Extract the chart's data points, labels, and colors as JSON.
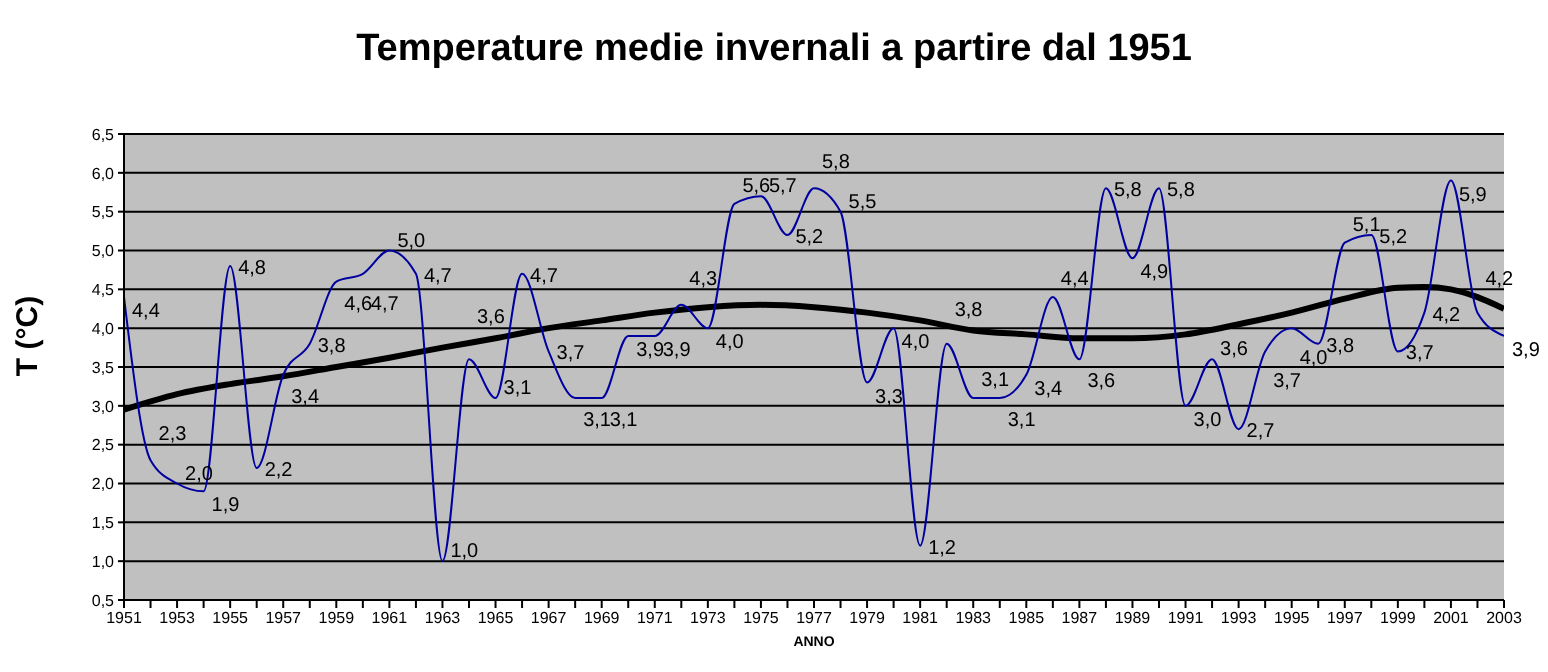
{
  "chart_data": {
    "type": "line",
    "title": "Temperature medie invernali a partire dal 1951",
    "xlabel": "ANNO",
    "ylabel": "T (°C)",
    "x": [
      1951,
      1952,
      1953,
      1954,
      1955,
      1956,
      1957,
      1958,
      1959,
      1960,
      1961,
      1962,
      1963,
      1964,
      1965,
      1966,
      1967,
      1968,
      1969,
      1970,
      1971,
      1972,
      1973,
      1974,
      1975,
      1976,
      1977,
      1978,
      1979,
      1980,
      1981,
      1982,
      1983,
      1984,
      1985,
      1986,
      1987,
      1988,
      1989,
      1990,
      1991,
      1992,
      1993,
      1994,
      1995,
      1996,
      1997,
      1998,
      1999,
      2000,
      2001,
      2002,
      2003
    ],
    "series": [
      {
        "color": "#0000a0",
        "values": [
          4.4,
          2.3,
          2.0,
          1.9,
          4.8,
          2.2,
          3.4,
          3.8,
          4.6,
          4.7,
          5.0,
          4.7,
          1.0,
          3.6,
          3.1,
          4.7,
          3.7,
          3.1,
          3.1,
          3.9,
          3.9,
          4.3,
          4.0,
          5.6,
          5.7,
          5.2,
          5.8,
          5.5,
          3.3,
          4.0,
          1.2,
          3.8,
          3.1,
          3.1,
          3.4,
          4.4,
          3.6,
          5.8,
          4.9,
          5.8,
          3.0,
          3.6,
          2.7,
          3.7,
          4.0,
          3.8,
          5.1,
          5.2,
          3.7,
          4.2,
          5.9,
          4.2,
          3.9
        ],
        "value_labels": [
          "4,4",
          "2,3",
          "2,0",
          "1,9",
          "4,8",
          "2,2",
          "3,4",
          "3,8",
          "4,6",
          "4,7",
          "5,0",
          "4,7",
          "1,0",
          "3,6",
          "3,1",
          "4,7",
          "3,7",
          "3,1",
          "3,1",
          "3,9",
          "3,9",
          "4,3",
          "4,0",
          "5,6",
          "5,7",
          "5,2",
          "5,8",
          "5,5",
          "3,3",
          "4,0",
          "1,2",
          "3,8",
          "3,1",
          "3,1",
          "3,4",
          "4,4",
          "3,6",
          "5,8",
          "4,9",
          "5,8",
          "3,0",
          "3,6",
          "2,7",
          "3,7",
          "4,0",
          "3,8",
          "5,1",
          "5,2",
          "3,7",
          "4,2",
          "5,9",
          "4,2",
          "3,9"
        ]
      },
      {
        "type": "line",
        "color": "#000000",
        "x": [
          1951,
          1953,
          1955,
          1957,
          1959,
          1961,
          1963,
          1965,
          1967,
          1969,
          1971,
          1973,
          1975,
          1977,
          1979,
          1981,
          1983,
          1985,
          1987,
          1989,
          1991,
          1993,
          1995,
          1997,
          1999,
          2000,
          2001,
          2002,
          2003
        ],
        "values": [
          2.95,
          3.15,
          3.28,
          3.38,
          3.5,
          3.62,
          3.75,
          3.87,
          4.0,
          4.1,
          4.2,
          4.27,
          4.3,
          4.27,
          4.2,
          4.1,
          3.97,
          3.92,
          3.87,
          3.87,
          3.92,
          4.05,
          4.2,
          4.38,
          4.52,
          4.53,
          4.5,
          4.4,
          4.25
        ]
      }
    ],
    "xlim": [
      1951,
      2003
    ],
    "xticks": [
      1951,
      {
        "value": 1952,
        "label": null
      },
      1953,
      {
        "value": 1954,
        "label": null
      },
      1955,
      {
        "value": 1956,
        "label": null
      },
      1957,
      {
        "value": 1958,
        "label": null
      },
      1959,
      {
        "value": 1960,
        "label": null
      },
      1961,
      {
        "value": 1962,
        "label": null
      },
      1963,
      {
        "value": 1964,
        "label": null
      },
      1965,
      {
        "value": 1966,
        "label": null
      },
      1967,
      {
        "value": 1968,
        "label": null
      },
      1969,
      {
        "value": 1970,
        "label": null
      },
      1971,
      {
        "value": 1972,
        "label": null
      },
      1973,
      {
        "value": 1974,
        "label": null
      },
      1975,
      {
        "value": 1976,
        "label": null
      },
      1977,
      {
        "value": 1978,
        "label": null
      },
      1979,
      {
        "value": 1980,
        "label": null
      },
      1981,
      {
        "value": 1982,
        "label": null
      },
      1983,
      {
        "value": 1984,
        "label": null
      },
      1985,
      {
        "value": 1986,
        "label": null
      },
      1987,
      {
        "value": 1988,
        "label": null
      },
      1989,
      {
        "value": 1990,
        "label": null
      },
      1991,
      {
        "value": 1992,
        "label": null
      },
      1993,
      {
        "value": 1994,
        "label": null
      },
      1995,
      {
        "value": 1996,
        "label": null
      },
      1997,
      {
        "value": 1998,
        "label": null
      },
      1999,
      {
        "value": 2000,
        "label": null
      },
      2001,
      {
        "value": 2002,
        "label": null
      },
      2003
    ],
    "ylim": [
      0.5,
      6.5
    ],
    "yticks": [
      {
        "value": 0.5,
        "label": "0,5"
      },
      {
        "value": 1,
        "label": "1,0"
      },
      {
        "value": 1.5,
        "label": "1,5"
      },
      {
        "value": 2,
        "label": "2,0"
      },
      {
        "value": 2.5,
        "label": "2,5"
      },
      {
        "value": 3,
        "label": "3,0"
      },
      {
        "value": 3.5,
        "label": "3,5"
      },
      {
        "value": 4,
        "label": "4,0"
      },
      {
        "value": 4.5,
        "label": "4,5"
      },
      {
        "value": 5,
        "label": "5,0"
      },
      {
        "value": 5.5,
        "label": "5,5"
      },
      {
        "value": 6,
        "label": "6,0"
      },
      {
        "value": 6.5,
        "label": "6,5"
      }
    ],
    "grid": "y",
    "legend": false,
    "marker": "none",
    "line_style": "solid"
  }
}
